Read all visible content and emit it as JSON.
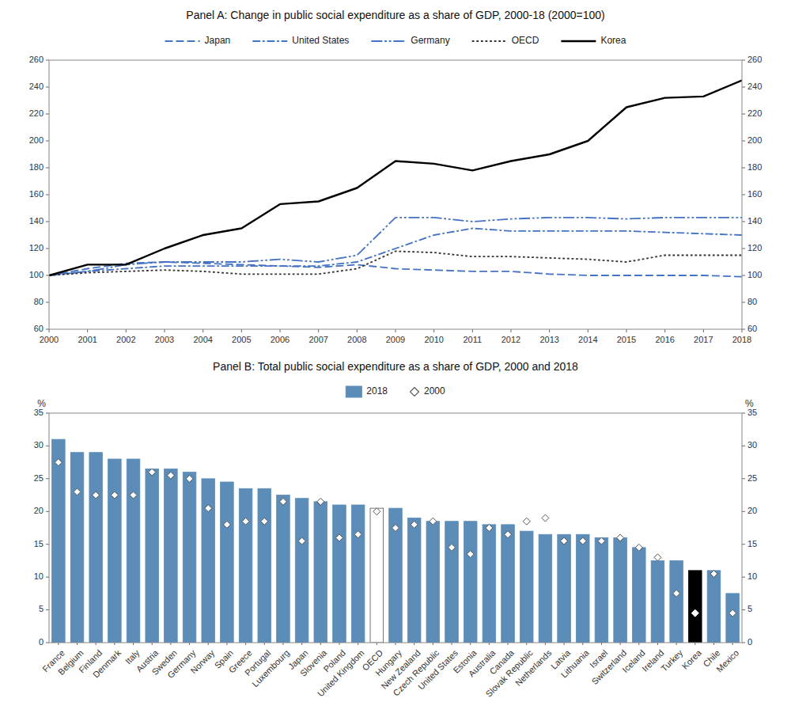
{
  "chart_data": [
    {
      "type": "line",
      "title": "Panel A: Change in public social expenditure as a share of GDP, 2000-18 (2000=100)",
      "x": [
        2000,
        2001,
        2002,
        2003,
        2004,
        2005,
        2006,
        2007,
        2008,
        2009,
        2010,
        2011,
        2012,
        2013,
        2014,
        2015,
        2016,
        2017,
        2018
      ],
      "xlim": [
        2000,
        2018
      ],
      "xticks": [
        2000,
        2001,
        2002,
        2003,
        2004,
        2005,
        2006,
        2007,
        2008,
        2009,
        2010,
        2011,
        2012,
        2013,
        2014,
        2015,
        2016,
        2017,
        2018
      ],
      "ylim": [
        60,
        260
      ],
      "yticks": [
        60,
        80,
        100,
        120,
        140,
        160,
        180,
        200,
        220,
        240,
        260
      ],
      "y2lim": [
        60,
        260
      ],
      "y2ticks": [
        60,
        80,
        100,
        120,
        140,
        160,
        180,
        200,
        220,
        240,
        260
      ],
      "grid": false,
      "legend": "top",
      "series": [
        {
          "name": "Japan",
          "color": "#4472c4",
          "line_style": "dashed",
          "values": [
            100,
            105,
            109,
            110,
            109,
            108,
            107,
            106,
            108,
            105,
            104,
            103,
            103,
            101,
            100,
            100,
            100,
            100,
            99
          ]
        },
        {
          "name": "United States",
          "color": "#4472c4",
          "line_style": "dashdot",
          "values": [
            100,
            103,
            105,
            107,
            107,
            107,
            107,
            107,
            110,
            120,
            130,
            135,
            133,
            133,
            133,
            133,
            132,
            131,
            130
          ]
        },
        {
          "name": "Germany",
          "color": "#4472c4",
          "line_style": "dashdotdot",
          "values": [
            100,
            103,
            108,
            110,
            110,
            110,
            112,
            110,
            115,
            143,
            143,
            140,
            142,
            143,
            143,
            142,
            143,
            143,
            143
          ]
        },
        {
          "name": "OECD",
          "color": "#333333",
          "line_style": "dotted",
          "values": [
            100,
            102,
            103,
            104,
            103,
            101,
            101,
            101,
            105,
            118,
            117,
            114,
            114,
            113,
            112,
            110,
            115,
            115,
            115
          ]
        },
        {
          "name": "Korea",
          "color": "#000000",
          "line_style": "solid",
          "values": [
            100,
            108,
            108,
            120,
            130,
            135,
            153,
            155,
            165,
            185,
            183,
            178,
            185,
            190,
            200,
            225,
            232,
            233,
            245
          ]
        }
      ]
    },
    {
      "type": "bar",
      "title": "Panel B: Total public social expenditure as a share of GDP, 2000 and 2018",
      "ylabel": "%",
      "y2label": "%",
      "categories": [
        "France",
        "Belgium",
        "Finland",
        "Denmark",
        "Italy",
        "Austria",
        "Sweden",
        "Germany",
        "Norway",
        "Spain",
        "Greece",
        "Portugal",
        "Luxembourg",
        "Japan",
        "Slovenia",
        "Poland",
        "United Kingdom",
        "OECD",
        "Hungary",
        "New Zealand",
        "Czech Republic",
        "United States",
        "Estonia",
        "Australia",
        "Canada",
        "Slovak Republic",
        "Netherlands",
        "Latvia",
        "Lithuania",
        "Israel",
        "Switzerland",
        "Iceland",
        "Ireland",
        "Turkey",
        "Korea",
        "Chile",
        "Mexico"
      ],
      "ylim": [
        0,
        35
      ],
      "yticks": [
        0,
        5,
        10,
        15,
        20,
        25,
        30,
        35
      ],
      "y2lim": [
        0,
        35
      ],
      "y2ticks": [
        0,
        5,
        10,
        15,
        20,
        25,
        30,
        35
      ],
      "grid": false,
      "legend": "top",
      "series": [
        {
          "name": "2018",
          "type": "bar",
          "color": "#5b8db8",
          "colors": [
            "#5b8db8",
            "#5b8db8",
            "#5b8db8",
            "#5b8db8",
            "#5b8db8",
            "#5b8db8",
            "#5b8db8",
            "#5b8db8",
            "#5b8db8",
            "#5b8db8",
            "#5b8db8",
            "#5b8db8",
            "#5b8db8",
            "#5b8db8",
            "#5b8db8",
            "#5b8db8",
            "#5b8db8",
            "#ffffff",
            "#5b8db8",
            "#5b8db8",
            "#5b8db8",
            "#5b8db8",
            "#5b8db8",
            "#5b8db8",
            "#5b8db8",
            "#5b8db8",
            "#5b8db8",
            "#5b8db8",
            "#5b8db8",
            "#5b8db8",
            "#5b8db8",
            "#5b8db8",
            "#5b8db8",
            "#5b8db8",
            "#000000",
            "#5b8db8",
            "#5b8db8"
          ],
          "values": [
            31.0,
            29.0,
            29.0,
            28.0,
            28.0,
            26.5,
            26.5,
            26.0,
            25.0,
            24.5,
            23.5,
            23.5,
            22.5,
            22.0,
            21.5,
            21.0,
            21.0,
            20.5,
            20.5,
            19.0,
            18.5,
            18.5,
            18.5,
            18.0,
            18.0,
            17.0,
            16.5,
            16.5,
            16.5,
            16.0,
            16.0,
            14.5,
            12.5,
            12.5,
            11.0,
            11.0,
            7.5
          ]
        },
        {
          "name": "2000",
          "type": "scatter",
          "marker": "diamond",
          "color": "#555555",
          "values": [
            27.5,
            23.0,
            22.5,
            22.5,
            22.5,
            26.0,
            25.5,
            25.0,
            20.5,
            18.0,
            18.5,
            18.5,
            21.5,
            15.5,
            21.5,
            16.0,
            16.5,
            20.0,
            17.5,
            18.0,
            18.5,
            14.5,
            13.5,
            17.5,
            16.5,
            18.5,
            19.0,
            15.5,
            15.5,
            15.5,
            16.0,
            14.5,
            13.0,
            7.5,
            4.5,
            10.5,
            4.5
          ]
        }
      ]
    }
  ]
}
